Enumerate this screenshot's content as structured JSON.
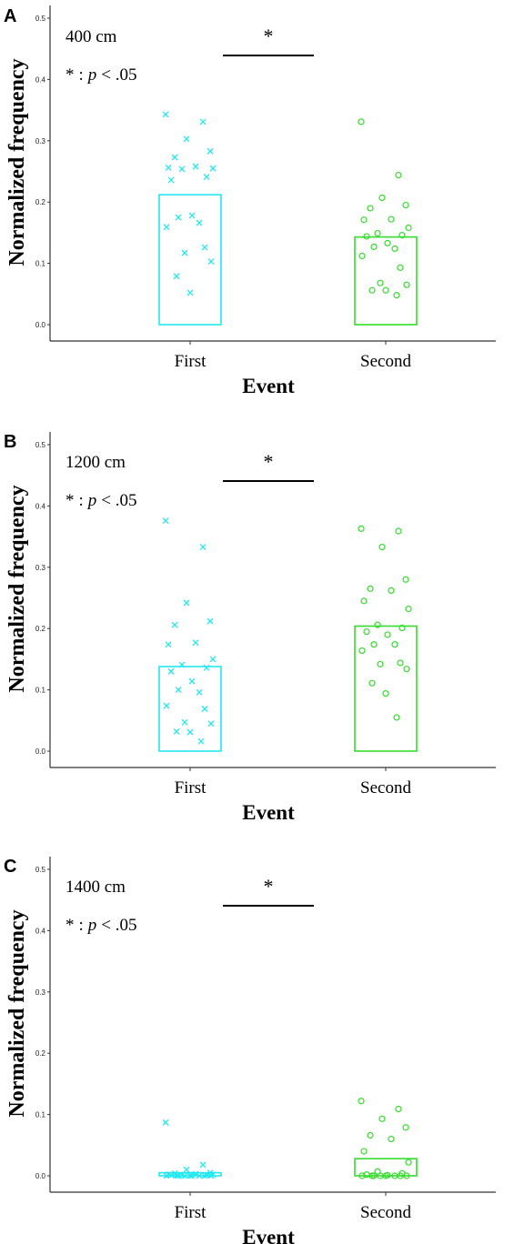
{
  "chart_data": [
    {
      "type": "bar",
      "panel": "A",
      "categories": [
        "First",
        "Second"
      ],
      "xlabel": "Event",
      "ylabel": "Normalized frequency",
      "ylim": [
        0,
        0.5
      ],
      "yticks": [
        "0.0",
        "0.1",
        "0.2",
        "0.3",
        "0.4",
        "0.5"
      ],
      "condition": "400 cm",
      "significance": "*",
      "legend_star": "*",
      "legend_sep": ":",
      "legend_p": "p",
      "legend_rest": "< .05",
      "bars": [
        0.212,
        0.143
      ],
      "points": [
        [
          0.343,
          0.331,
          0.303,
          0.283,
          0.273,
          0.258,
          0.256,
          0.255,
          0.254,
          0.241,
          0.236,
          0.178,
          0.175,
          0.166,
          0.159,
          0.126,
          0.117,
          0.103,
          0.079,
          0.052
        ],
        [
          0.331,
          0.244,
          0.207,
          0.195,
          0.19,
          0.172,
          0.171,
          0.158,
          0.149,
          0.146,
          0.144,
          0.133,
          0.127,
          0.124,
          0.112,
          0.093,
          0.068,
          0.065,
          0.056,
          0.056,
          0.048
        ]
      ]
    },
    {
      "type": "bar",
      "panel": "B",
      "categories": [
        "First",
        "Second"
      ],
      "xlabel": "Event",
      "ylabel": "Normalized frequency",
      "ylim": [
        0,
        0.5
      ],
      "yticks": [
        "0.0",
        "0.1",
        "0.2",
        "0.3",
        "0.4",
        "0.5"
      ],
      "condition": "1200 cm",
      "significance": "*",
      "legend_star": "*",
      "legend_sep": ":",
      "legend_p": "p",
      "legend_rest": "< .05",
      "bars": [
        0.138,
        0.204
      ],
      "points": [
        [
          0.376,
          0.333,
          0.242,
          0.212,
          0.206,
          0.177,
          0.174,
          0.15,
          0.141,
          0.136,
          0.13,
          0.114,
          0.1,
          0.096,
          0.074,
          0.069,
          0.047,
          0.045,
          0.032,
          0.031,
          0.016
        ],
        [
          0.363,
          0.359,
          0.333,
          0.28,
          0.265,
          0.262,
          0.245,
          0.232,
          0.206,
          0.201,
          0.195,
          0.19,
          0.174,
          0.174,
          0.164,
          0.144,
          0.142,
          0.134,
          0.111,
          0.094,
          0.055
        ]
      ]
    },
    {
      "type": "bar",
      "panel": "C",
      "categories": [
        "First",
        "Second"
      ],
      "xlabel": "Event",
      "ylabel": "Normalized frequency",
      "ylim": [
        0,
        0.5
      ],
      "yticks": [
        "0.0",
        "0.1",
        "0.2",
        "0.3",
        "0.4",
        "0.5"
      ],
      "condition": "1400 cm",
      "significance": "*",
      "legend_star": "*",
      "legend_sep": ":",
      "legend_p": "p",
      "legend_rest": "< .05",
      "bars": [
        0.005,
        0.028
      ],
      "points": [
        [
          0.087,
          0.018,
          0.01,
          0.005,
          0.004,
          0.003,
          0.002,
          0.002,
          0.001,
          0.001,
          0.001,
          0,
          0,
          0,
          0,
          0,
          0,
          0,
          0,
          0
        ],
        [
          0.122,
          0.109,
          0.093,
          0.079,
          0.066,
          0.06,
          0.04,
          0.022,
          0.007,
          0.004,
          0.002,
          0.001,
          0,
          0,
          0,
          0,
          0,
          0,
          0,
          0
        ]
      ]
    }
  ],
  "colors": {
    "first": "#22e8f0",
    "second": "#33dd2a",
    "axis": "#333333"
  },
  "markers": [
    "cross",
    "circle"
  ]
}
